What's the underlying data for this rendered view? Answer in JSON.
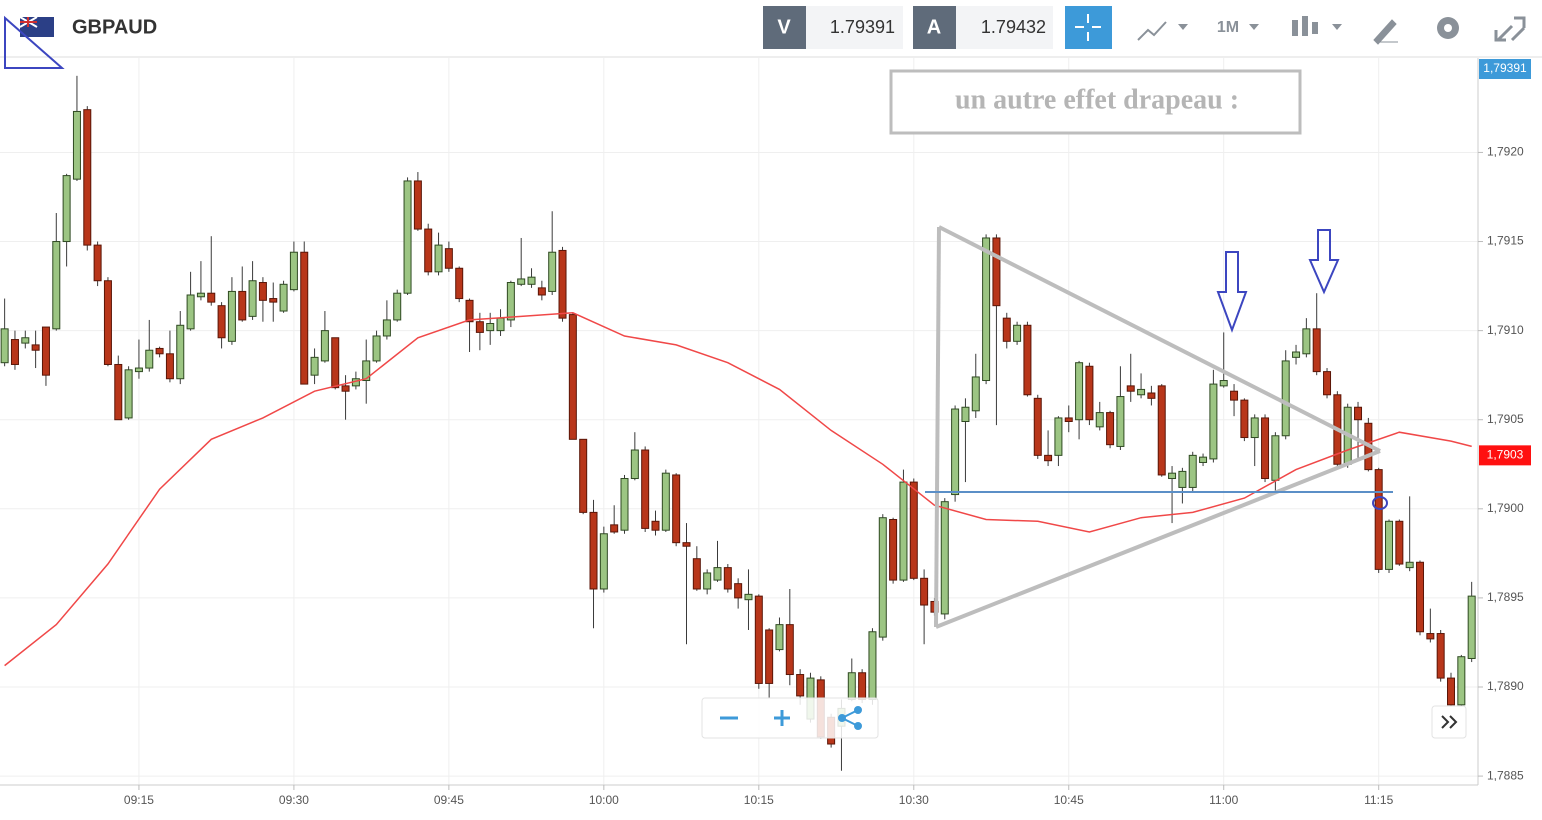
{
  "toolbar": {
    "symbol": "GBPAUD",
    "bid_label": "V",
    "bid": "1.79391",
    "ask_label": "A",
    "ask": "1.79432",
    "timeframe": "1M"
  },
  "chart_data": {
    "type": "candlestick",
    "annotation": "un autre effet drapeau :",
    "x": [
      "09:02",
      "09:03",
      "09:04",
      "09:05",
      "09:06",
      "09:07",
      "09:08",
      "09:09",
      "09:10",
      "09:11",
      "09:12",
      "09:13",
      "09:14",
      "09:15",
      "09:16",
      "09:17",
      "09:18",
      "09:19",
      "09:20",
      "09:21",
      "09:22",
      "09:23",
      "09:24",
      "09:25",
      "09:26",
      "09:27",
      "09:28",
      "09:29",
      "09:30",
      "09:31",
      "09:32",
      "09:33",
      "09:34",
      "09:35",
      "09:36",
      "09:37",
      "09:38",
      "09:39",
      "09:40",
      "09:41",
      "09:42",
      "09:43",
      "09:44",
      "09:45",
      "09:46",
      "09:47",
      "09:48",
      "09:49",
      "09:50",
      "09:51",
      "09:52",
      "09:53",
      "09:54",
      "09:55",
      "09:56",
      "09:57",
      "09:58",
      "09:59",
      "10:00",
      "10:01",
      "10:02",
      "10:03",
      "10:04",
      "10:05",
      "10:06",
      "10:07",
      "10:08",
      "10:09",
      "10:10",
      "10:11",
      "10:12",
      "10:13",
      "10:14",
      "10:15",
      "10:16",
      "10:17",
      "10:18",
      "10:19",
      "10:20",
      "10:21",
      "10:22",
      "10:23",
      "10:24",
      "10:25",
      "10:26",
      "10:27",
      "10:28",
      "10:29",
      "10:30",
      "10:31",
      "10:32",
      "10:33",
      "10:34",
      "10:35",
      "10:36",
      "10:37",
      "10:38",
      "10:39",
      "10:40",
      "10:41",
      "10:42",
      "10:43",
      "10:44",
      "10:45",
      "10:46",
      "10:47",
      "10:48",
      "10:49",
      "10:50",
      "10:51",
      "10:52",
      "10:53",
      "10:54",
      "10:55",
      "10:56",
      "10:57",
      "10:58",
      "10:59",
      "11:00",
      "11:01",
      "11:02",
      "11:03",
      "11:04",
      "11:05",
      "11:06",
      "11:07",
      "11:08",
      "11:09",
      "11:10",
      "11:11",
      "11:12",
      "11:13",
      "11:14",
      "11:15",
      "11:16",
      "11:17",
      "11:18",
      "11:19",
      "11:20",
      "11:21",
      "11:22",
      "11:23",
      "11:24"
    ],
    "open": [
      1.79082,
      1.79095,
      1.79093,
      1.79092,
      1.79102,
      1.79101,
      1.7915,
      1.79185,
      1.79224,
      1.79148,
      1.79128,
      1.79081,
      1.79051,
      1.79077,
      1.79079,
      1.7909,
      1.79087,
      1.79073,
      1.79101,
      1.79119,
      1.79121,
      1.79114,
      1.79094,
      1.79122,
      1.79108,
      1.79127,
      1.79118,
      1.79111,
      1.79123,
      1.79144,
      1.79075,
      1.79083,
      1.79096,
      1.79069,
      1.79069,
      1.79072,
      1.79083,
      1.79097,
      1.79106,
      1.79121,
      1.79184,
      1.79157,
      1.79133,
      1.79146,
      1.79135,
      1.79117,
      1.79105,
      1.791,
      1.791,
      1.79106,
      1.79126,
      1.79126,
      1.79124,
      1.79122,
      1.79145,
      1.79109,
      1.79039,
      1.78998,
      1.78955,
      1.78991,
      1.78988,
      1.79017,
      1.79033,
      1.78993,
      1.78988,
      1.79019,
      1.78981,
      1.78972,
      1.78955,
      1.7896,
      1.78967,
      1.78958,
      1.78949,
      1.78951,
      1.78932,
      1.78921,
      1.78935,
      1.78907,
      1.78882,
      1.78904,
      1.78883,
      1.78878,
      1.78893,
      1.78908,
      1.78893,
      1.78928,
      1.78994,
      1.7896,
      1.79015,
      1.78961,
      1.78948,
      1.78941,
      1.79008,
      1.79049,
      1.79055,
      1.79072,
      1.79152,
      1.79107,
      1.79094,
      1.79103,
      1.79062,
      1.7903,
      1.7903,
      1.79051,
      1.7905,
      1.7908,
      1.79046,
      1.79054,
      1.79035,
      1.79069,
      1.79064,
      1.79065,
      1.79069,
      1.79017,
      1.79012,
      1.79012,
      1.79026,
      1.79028,
      1.79069,
      1.79066,
      1.79061,
      1.7904,
      1.79051,
      1.79016,
      1.79041,
      1.79085,
      1.79087,
      1.79101,
      1.79077,
      1.79064,
      1.79025,
      1.79057,
      1.79048,
      1.79022,
      1.78966,
      1.78993,
      1.78967,
      1.7897,
      1.7893,
      1.7893,
      1.78905,
      1.7889,
      1.78916
    ],
    "high": [
      1.79118,
      1.791,
      1.791,
      1.791,
      1.79102,
      1.79166,
      1.79188,
      1.79243,
      1.79226,
      1.7915,
      1.7913,
      1.79086,
      1.7908,
      1.79095,
      1.79106,
      1.79091,
      1.791,
      1.79111,
      1.79133,
      1.79139,
      1.79153,
      1.79116,
      1.7913,
      1.79136,
      1.79139,
      1.7913,
      1.79127,
      1.79128,
      1.7915,
      1.7915,
      1.7909,
      1.79111,
      1.79096,
      1.79075,
      1.79077,
      1.79095,
      1.791,
      1.79117,
      1.79123,
      1.79186,
      1.79189,
      1.7916,
      1.79155,
      1.7915,
      1.79136,
      1.79118,
      1.7911,
      1.7911,
      1.79112,
      1.79128,
      1.79152,
      1.79135,
      1.79128,
      1.79167,
      1.79147,
      1.7911,
      1.79039,
      1.79005,
      1.7899,
      1.79002,
      1.79019,
      1.79043,
      1.79035,
      1.78999,
      1.79022,
      1.7902,
      1.78992,
      1.78979,
      1.78966,
      1.78982,
      1.78969,
      1.78961,
      1.78966,
      1.78952,
      1.78933,
      1.78939,
      1.78955,
      1.7891,
      1.78908,
      1.78906,
      1.78885,
      1.78893,
      1.78916,
      1.7891,
      1.78933,
      1.78997,
      1.78995,
      1.79022,
      1.79017,
      1.78966,
      1.7895,
      1.79006,
      1.79058,
      1.79062,
      1.79087,
      1.79154,
      1.79154,
      1.7911,
      1.79105,
      1.79105,
      1.79064,
      1.79044,
      1.79052,
      1.79058,
      1.79083,
      1.79082,
      1.7906,
      1.79055,
      1.7908,
      1.79087,
      1.79076,
      1.79069,
      1.7907,
      1.79024,
      1.79023,
      1.79032,
      1.79031,
      1.79078,
      1.79099,
      1.7907,
      1.79062,
      1.79053,
      1.79053,
      1.79043,
      1.79089,
      1.79092,
      1.79107,
      1.79121,
      1.79079,
      1.79066,
      1.79059,
      1.7906,
      1.79051,
      1.79023,
      1.78994,
      1.78994,
      1.79007,
      1.78971,
      1.78944,
      1.78932,
      1.78908,
      1.78918,
      1.78959
    ],
    "low": [
      1.7908,
      1.79078,
      1.7909,
      1.79079,
      1.79069,
      1.791,
      1.79136,
      1.79184,
      1.79145,
      1.79125,
      1.7908,
      1.7905,
      1.7905,
      1.79073,
      1.79077,
      1.79085,
      1.79071,
      1.7907,
      1.791,
      1.79117,
      1.79114,
      1.7909,
      1.79092,
      1.79105,
      1.79106,
      1.79105,
      1.79105,
      1.7911,
      1.79122,
      1.7907,
      1.7907,
      1.79082,
      1.79067,
      1.7905,
      1.79067,
      1.79059,
      1.79082,
      1.79095,
      1.79105,
      1.7912,
      1.79156,
      1.79131,
      1.79131,
      1.79133,
      1.79116,
      1.79088,
      1.79089,
      1.79092,
      1.79097,
      1.79102,
      1.79125,
      1.79124,
      1.79117,
      1.7912,
      1.79105,
      1.79039,
      1.78997,
      1.78933,
      1.78953,
      1.78986,
      1.78986,
      1.79016,
      1.78987,
      1.78985,
      1.78987,
      1.78979,
      1.78924,
      1.78954,
      1.78952,
      1.78959,
      1.78953,
      1.78944,
      1.78932,
      1.78899,
      1.78894,
      1.7892,
      1.78901,
      1.7889,
      1.7888,
      1.78871,
      1.78866,
      1.78853,
      1.78892,
      1.78891,
      1.7889,
      1.78926,
      1.78958,
      1.78959,
      1.7896,
      1.78924,
      1.7894,
      1.78938,
      1.79004,
      1.79015,
      1.79051,
      1.7907,
      1.79047,
      1.7909,
      1.79092,
      1.79063,
      1.79028,
      1.79024,
      1.79024,
      1.79043,
      1.79039,
      1.79047,
      1.79044,
      1.79034,
      1.79033,
      1.7906,
      1.79062,
      1.79058,
      1.79018,
      1.78992,
      1.79003,
      1.7901,
      1.79024,
      1.79026,
      1.79068,
      1.79052,
      1.79038,
      1.79024,
      1.79015,
      1.7901,
      1.79039,
      1.79081,
      1.79085,
      1.79075,
      1.79062,
      1.79023,
      1.79023,
      1.79027,
      1.79021,
      1.78964,
      1.78964,
      1.78968,
      1.78965,
      1.78929,
      1.78925,
      1.78903,
      1.78887,
      1.78889,
      1.78914
    ],
    "close": [
      1.79101,
      1.79081,
      1.79096,
      1.79089,
      1.79075,
      1.7915,
      1.79187,
      1.79223,
      1.79148,
      1.79128,
      1.79081,
      1.7905,
      1.79078,
      1.79079,
      1.79089,
      1.79087,
      1.79073,
      1.79103,
      1.7912,
      1.79121,
      1.79116,
      1.79096,
      1.79122,
      1.79106,
      1.79128,
      1.79117,
      1.79116,
      1.79126,
      1.79144,
      1.7907,
      1.79085,
      1.791,
      1.79068,
      1.79066,
      1.79073,
      1.79083,
      1.79097,
      1.79106,
      1.79121,
      1.79184,
      1.79157,
      1.79133,
      1.79148,
      1.79135,
      1.79118,
      1.79105,
      1.79099,
      1.79104,
      1.79107,
      1.79127,
      1.79129,
      1.7913,
      1.7912,
      1.79144,
      1.79107,
      1.79039,
      1.78998,
      1.78955,
      1.78986,
      1.78987,
      1.79017,
      1.79033,
      1.78989,
      1.78988,
      1.7902,
      1.78981,
      1.78979,
      1.78955,
      1.78964,
      1.78967,
      1.78955,
      1.7895,
      1.78952,
      1.78902,
      1.78902,
      1.78935,
      1.78907,
      1.78895,
      1.78905,
      1.78872,
      1.78868,
      1.78888,
      1.78908,
      1.78893,
      1.78931,
      1.78995,
      1.7896,
      1.79015,
      1.78961,
      1.78946,
      1.78942,
      1.79004,
      1.79056,
      1.79057,
      1.79074,
      1.79152,
      1.79114,
      1.79094,
      1.79103,
      1.79064,
      1.7903,
      1.79027,
      1.79051,
      1.79049,
      1.79082,
      1.7905,
      1.79054,
      1.79036,
      1.79063,
      1.79066,
      1.79067,
      1.79062,
      1.79019,
      1.7902,
      1.79021,
      1.7903,
      1.79029,
      1.7907,
      1.79072,
      1.79061,
      1.7904,
      1.79051,
      1.79017,
      1.79041,
      1.79083,
      1.79088,
      1.79101,
      1.79077,
      1.79064,
      1.79025,
      1.79057,
      1.7905,
      1.79022,
      1.78966,
      1.78993,
      1.78969,
      1.7897,
      1.78931,
      1.78927,
      1.78905,
      1.7889,
      1.78917,
      1.78951
    ],
    "up_color": "#9cc583",
    "down_color": "#b8361a",
    "overlay": {
      "color": "#f04848",
      "x": [
        "09:02",
        "09:07",
        "09:12",
        "09:17",
        "09:22",
        "09:27",
        "09:32",
        "09:37",
        "09:42",
        "09:47",
        "09:52",
        "09:57",
        "10:02",
        "10:07",
        "10:12",
        "10:17",
        "10:22",
        "10:27",
        "10:32",
        "10:37",
        "10:42",
        "10:47",
        "10:52",
        "10:57",
        "11:02",
        "11:07",
        "11:12",
        "11:17",
        "11:22",
        "11:24"
      ],
      "values": [
        1.78912,
        1.78935,
        1.78969,
        1.79011,
        1.79039,
        1.79051,
        1.79066,
        1.79073,
        1.79096,
        1.79106,
        1.79108,
        1.7911,
        1.79097,
        1.79092,
        1.79082,
        1.79067,
        1.79044,
        1.79025,
        1.79002,
        1.78994,
        1.78993,
        1.78987,
        1.78995,
        1.78998,
        1.79006,
        1.79022,
        1.79033,
        1.79043,
        1.79038,
        1.79035
      ]
    },
    "xlim": [
      "09:01",
      "11:25"
    ],
    "xticks": [
      "09:15",
      "09:30",
      "09:45",
      "10:00",
      "10:15",
      "10:30",
      "10:45",
      "11:00",
      "11:15"
    ],
    "ylim": [
      1.78845,
      1.79253
    ],
    "yticks": [
      {
        "value": 1.7885,
        "label": "1,7885"
      },
      {
        "value": 1.789,
        "label": "1,7890"
      },
      {
        "value": 1.7895,
        "label": "1,7895"
      },
      {
        "value": 1.79,
        "label": "1,7900"
      },
      {
        "value": 1.7905,
        "label": "1,7905"
      },
      {
        "value": 1.791,
        "label": "1,7910"
      },
      {
        "value": 1.7915,
        "label": "1,7915"
      },
      {
        "value": 1.792,
        "label": "1,7920"
      }
    ],
    "grid": true,
    "price_tags": [
      {
        "label": "1,79391",
        "color": "#3d9ad9"
      },
      {
        "value": 1.7903,
        "label": "1,7903",
        "color": "#ff1010"
      }
    ]
  }
}
